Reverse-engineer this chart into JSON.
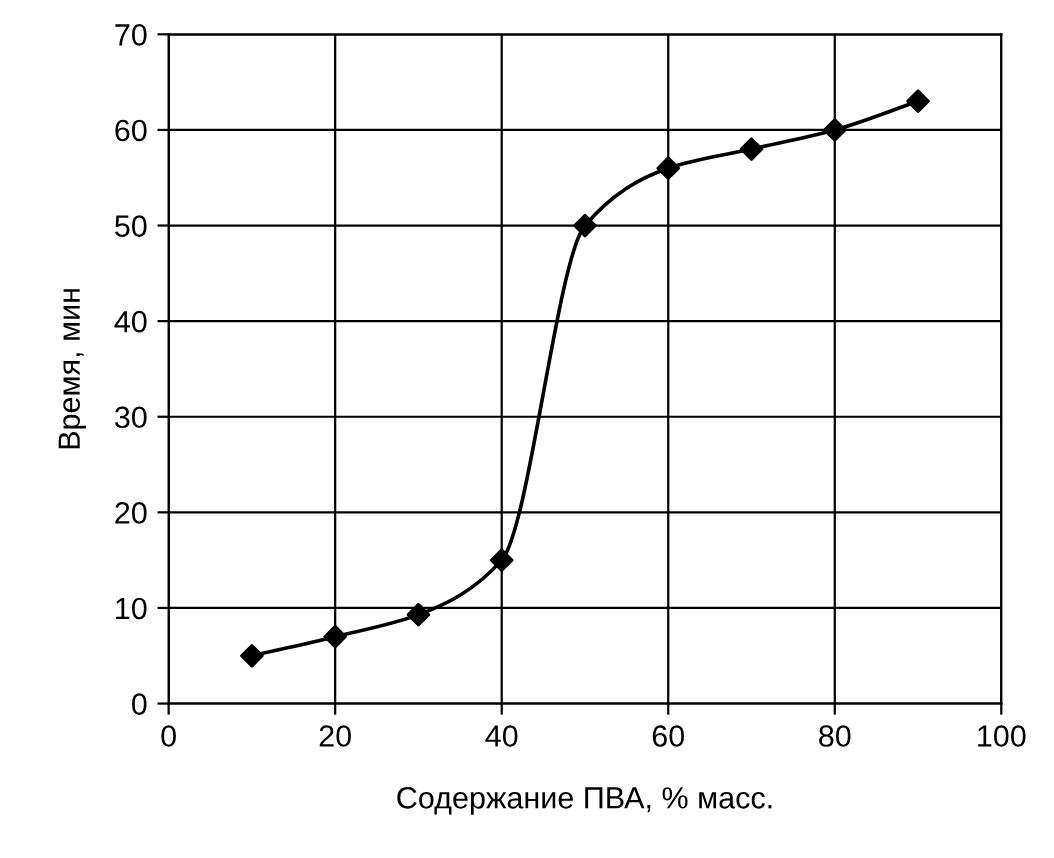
{
  "chart_data": {
    "type": "line",
    "xlabel": "Содержание ПВА, % масс.",
    "ylabel": "Время, мин",
    "x": [
      10,
      20,
      30,
      40,
      50,
      60,
      70,
      80,
      90
    ],
    "series": [
      {
        "color": "#000000",
        "values": [
          5,
          7,
          9.3,
          15,
          50,
          56,
          58,
          60,
          63
        ]
      }
    ],
    "xlim": [
      0,
      100
    ],
    "xticks": [
      0,
      20,
      40,
      60,
      80,
      100
    ],
    "ylim": [
      0,
      70
    ],
    "yticks": [
      0,
      10,
      20,
      30,
      40,
      50,
      60,
      70
    ],
    "grid": true,
    "marker": "diamond",
    "line_style": "solid"
  }
}
